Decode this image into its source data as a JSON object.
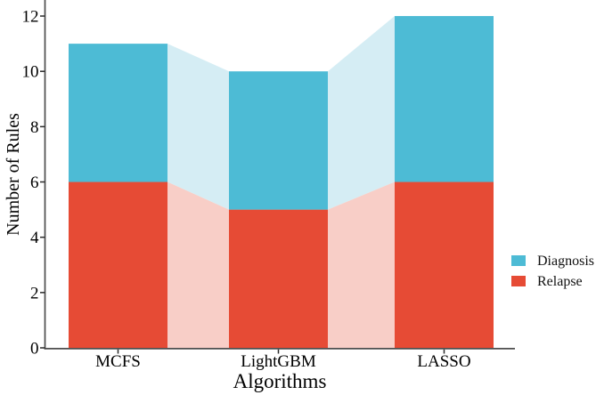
{
  "chart_data": {
    "type": "bar",
    "subtype": "stacked-bars-with-connecting-bands",
    "title": "",
    "xlabel": "Algorithms",
    "ylabel": "Number of Rules",
    "categories": [
      "MCFS",
      "LightGBM",
      "LASSO"
    ],
    "series": [
      {
        "name": "Relapse",
        "color": "#E64B35",
        "connector_color": "#F8CEC7",
        "values": [
          6,
          5,
          6
        ]
      },
      {
        "name": "Diagnosis",
        "color": "#4DBBD5",
        "connector_color": "#D5EDF4",
        "values": [
          5,
          5,
          6
        ]
      }
    ],
    "stack_totals": [
      11,
      10,
      12
    ],
    "ylim": [
      0,
      12.6
    ],
    "yticks": [
      0,
      2,
      4,
      6,
      8,
      10,
      12
    ],
    "grid": false,
    "axis_color": "#4d4d4d",
    "tick_color": "#2b2b2b",
    "legend": {
      "position": "center-right",
      "items": [
        {
          "label": "Diagnosis",
          "color": "#4DBBD5"
        },
        {
          "label": "Relapse",
          "color": "#E64B35"
        }
      ]
    }
  }
}
